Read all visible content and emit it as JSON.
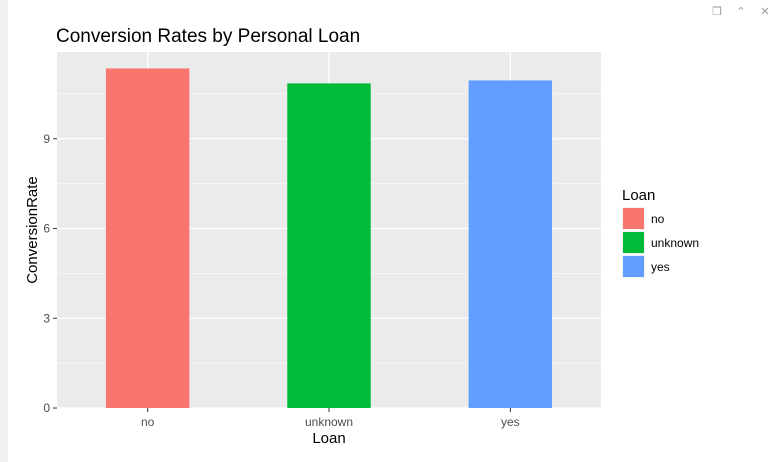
{
  "toolbar": {
    "icons": [
      "popout-icon",
      "collapse-icon",
      "close-icon"
    ],
    "glyphs": [
      "❐",
      "⌃",
      "✕"
    ]
  },
  "chart_data": {
    "type": "bar",
    "title": "Conversion Rates by Personal Loan",
    "xlabel": "Loan",
    "ylabel": "ConversionRate",
    "categories": [
      "no",
      "unknown",
      "yes"
    ],
    "values": [
      11.35,
      10.85,
      10.95
    ],
    "colors": [
      "#F8766D",
      "#00BA38",
      "#619CFF"
    ],
    "ylim": [
      0,
      11.9
    ],
    "yticks": [
      0,
      3,
      6,
      9
    ],
    "ytick_labels": [
      "0",
      "3",
      "6",
      "9"
    ],
    "panel_background": "#EBEBEB",
    "grid": true,
    "legend": {
      "title": "Loan",
      "entries": [
        "no",
        "unknown",
        "yes"
      ],
      "position": "right"
    }
  }
}
